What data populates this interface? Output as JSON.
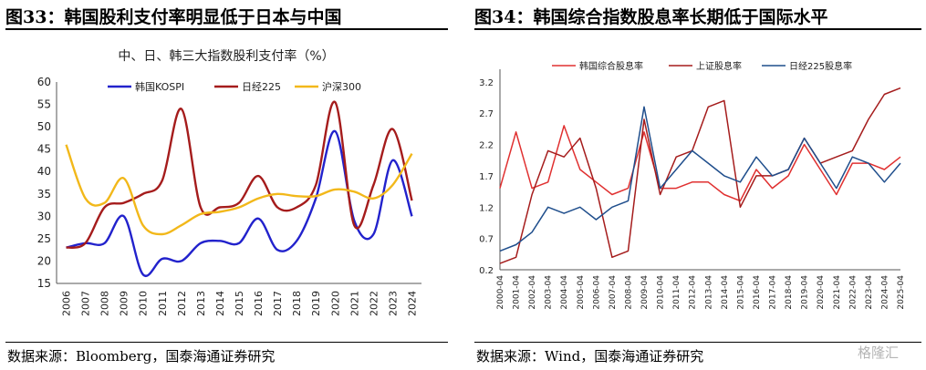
{
  "left": {
    "figure_title": "图33：韩国股利支付率明显低于日本与中国",
    "source": "数据来源：Bloomberg，国泰海通证券研究"
  },
  "right": {
    "figure_title": "图34：韩国综合指数股息率长期低于国际水平",
    "source": "数据来源：Wind，国泰海通证券研究"
  },
  "watermark": "格隆汇",
  "chart_data": [
    {
      "type": "line",
      "title": "中、日、韩三大指数股利支付率（%）",
      "xlabel": "",
      "ylabel": "",
      "x": [
        "2006",
        "2007",
        "2008",
        "2009",
        "2010",
        "2011",
        "2012",
        "2013",
        "2014",
        "2015",
        "2016",
        "2017",
        "2018",
        "2019",
        "2020",
        "2021",
        "2022",
        "2023",
        "2024"
      ],
      "ylim": [
        15,
        60
      ],
      "yticks": [
        15,
        20,
        25,
        30,
        35,
        40,
        45,
        50,
        55,
        60
      ],
      "legend_position": "top",
      "grid": false,
      "series": [
        {
          "name": "韩国KOSPI",
          "color": "#2222cc",
          "values": [
            23,
            24,
            24,
            30,
            17,
            20.5,
            20,
            24,
            24.5,
            24,
            29.5,
            22.5,
            24.5,
            34,
            49,
            29,
            26,
            42.5,
            30
          ]
        },
        {
          "name": "日经225",
          "color": "#a51c1c",
          "values": [
            23,
            24,
            32,
            33,
            35,
            38,
            54,
            32,
            32,
            33,
            39,
            32,
            32,
            37,
            55.5,
            28,
            37,
            49.5,
            33.5
          ]
        },
        {
          "name": "沪深300",
          "color": "#f2b81a",
          "values": [
            46,
            34,
            33,
            38.5,
            28,
            26,
            28,
            30.5,
            31,
            32,
            34,
            35,
            34.5,
            34.5,
            36,
            35.5,
            34,
            37,
            44
          ]
        }
      ]
    },
    {
      "type": "line",
      "title": "",
      "xlabel": "",
      "ylabel": "",
      "x": [
        "2000-04",
        "2001-04",
        "2002-04",
        "2003-04",
        "2004-04",
        "2005-04",
        "2006-04",
        "2007-04",
        "2008-04",
        "2009-04",
        "2010-04",
        "2011-04",
        "2012-04",
        "2013-04",
        "2014-04",
        "2015-04",
        "2016-04",
        "2017-04",
        "2018-04",
        "2019-04",
        "2020-04",
        "2021-04",
        "2022-04",
        "2023-04",
        "2024-04",
        "2025-04"
      ],
      "ylim": [
        0.2,
        3.4
      ],
      "yticks": [
        0.2,
        0.7,
        1.2,
        1.7,
        2.2,
        2.7,
        3.2
      ],
      "legend_position": "top",
      "grid": false,
      "series": [
        {
          "name": "韩国综合股息率",
          "color": "#e03030",
          "values": [
            1.5,
            2.4,
            1.5,
            1.6,
            2.5,
            1.8,
            1.6,
            1.4,
            1.5,
            2.4,
            1.5,
            1.5,
            1.6,
            1.6,
            1.4,
            1.3,
            1.8,
            1.5,
            1.7,
            2.2,
            1.8,
            1.4,
            1.9,
            1.9,
            1.8,
            2.0
          ]
        },
        {
          "name": "上证股息率",
          "color": "#a51c1c",
          "values": [
            0.3,
            0.4,
            1.4,
            2.1,
            2.0,
            2.3,
            1.5,
            0.4,
            0.5,
            2.6,
            1.4,
            2.0,
            2.1,
            2.8,
            2.9,
            1.2,
            1.7,
            1.7,
            1.8,
            2.3,
            1.9,
            2.0,
            2.1,
            2.6,
            3.0,
            3.1
          ]
        },
        {
          "name": "日经225股息率",
          "color": "#1f4e8c",
          "values": [
            0.5,
            0.6,
            0.8,
            1.2,
            1.1,
            1.2,
            1.0,
            1.2,
            1.3,
            2.8,
            1.5,
            1.8,
            2.1,
            1.9,
            1.7,
            1.6,
            2.0,
            1.7,
            1.8,
            2.3,
            1.9,
            1.5,
            2.0,
            1.9,
            1.6,
            1.9
          ]
        }
      ]
    }
  ]
}
